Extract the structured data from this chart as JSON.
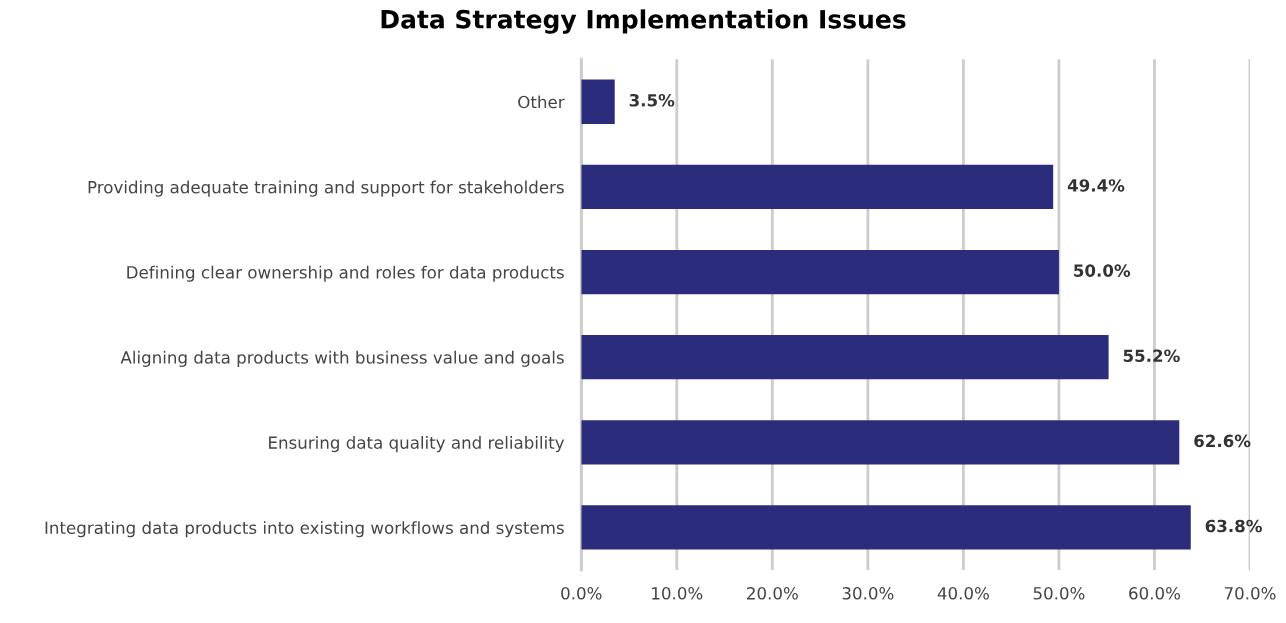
{
  "chart_data": {
    "type": "bar",
    "orientation": "horizontal",
    "title": "Data Strategy Implementation Issues",
    "categories": [
      "Other",
      "Providing adequate training and support for stakeholders",
      "Defining clear ownership and roles for data products",
      "Aligning data products with business value and goals",
      "Ensuring data quality and reliability",
      "Integrating data products into existing workflows and systems"
    ],
    "values": [
      3.5,
      49.4,
      50.0,
      55.2,
      62.6,
      63.8
    ],
    "value_labels": [
      "3.5%",
      "49.4%",
      "50.0%",
      "55.2%",
      "62.6%",
      "63.8%"
    ],
    "color": "#2b2d7c",
    "xlim": [
      0,
      70
    ],
    "xticks": [
      {
        "value": 0,
        "label": "0.0%"
      },
      {
        "value": 10,
        "label": "10.0%"
      },
      {
        "value": 20,
        "label": "20.0%"
      },
      {
        "value": 30,
        "label": "30.0%"
      },
      {
        "value": 40,
        "label": "40.0%"
      },
      {
        "value": 50,
        "label": "50.0%"
      },
      {
        "value": 60,
        "label": "60.0%"
      },
      {
        "value": 70,
        "label": "70.0%"
      }
    ],
    "grid": "x",
    "legend": false
  }
}
